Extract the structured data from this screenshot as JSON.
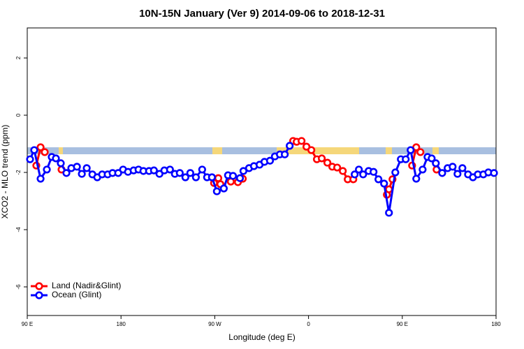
{
  "chart_data": {
    "type": "line",
    "title": "10N-15N January (Ver 9)   2014-09-06 to 2018-12-31",
    "x_label": "Longitude (deg E)",
    "y_label": "XCO2 - MLO trend (ppm)",
    "xlim": [
      90,
      540
    ],
    "xticks": [
      {
        "value": 90,
        "label": "90 E"
      },
      180,
      {
        "value": 270,
        "label": "90 W"
      },
      {
        "value": 360,
        "label": "0"
      },
      {
        "value": 450,
        "label": "90 E"
      },
      {
        "value": 540,
        "label": "180"
      }
    ],
    "ylim": [
      -7,
      3.05
    ],
    "yticks": [
      2,
      0,
      -2,
      -4,
      -6
    ],
    "legend": "bottom-left",
    "series": [
      {
        "name": "Land (Nadir&Glint)",
        "color": "#ff0000",
        "x": [
          98.7,
          102.8,
          106.8,
          null,
          122.9,
          null,
          269.3,
          273.4,
          275.4,
          null,
          285.4,
          292.2,
          296.9,
          null,
          345.2,
          348.6,
          353.3,
          358.0,
          362.7,
          368.0,
          372.7,
          378.1,
          382.8,
          387.5,
          392.9,
          397.6,
          403.0,
          null,
          435.2,
          437.2,
          440.6,
          null,
          459.4,
          463.4,
          467.4,
          null,
          482.9
        ],
        "values": [
          -1.76,
          -1.12,
          -1.29,
          null,
          -1.9,
          null,
          -2.37,
          -2.2,
          -2.41,
          null,
          -2.32,
          -2.34,
          -2.22,
          null,
          -0.9,
          -0.93,
          -0.9,
          -1.1,
          -1.22,
          -1.54,
          -1.51,
          -1.66,
          -1.8,
          -1.83,
          -1.95,
          -2.24,
          -2.24,
          null,
          -2.78,
          -2.59,
          -2.24,
          null,
          -1.76,
          -1.12,
          -1.29,
          null,
          -1.9
        ]
      },
      {
        "name": "Ocean (Glint)",
        "color": "#0000ff",
        "x": [
          92.7,
          96.7,
          102.8,
          108.8,
          113.5,
          117.5,
          122.2,
          127.6,
          132.3,
          137.7,
          142.4,
          147.1,
          152.5,
          157.2,
          161.9,
          167.2,
          171.9,
          177.3,
          182.0,
          186.7,
          192.1,
          196.8,
          201.5,
          206.9,
          211.6,
          216.9,
          221.6,
          227.0,
          231.7,
          236.4,
          241.8,
          246.5,
          251.9,
          257.9,
          262.6,
          267.3,
          272.0,
          278.7,
          282.7,
          287.5,
          294.2,
          297.5,
          302.9,
          307.6,
          313.0,
          317.7,
          323.0,
          327.7,
          332.5,
          337.2,
          341.9,
          null,
          404.3,
          408.3,
          412.4,
          417.7,
          422.4,
          427.1,
          432.5,
          437.2,
          443.3,
          448.6,
          453.3,
          458.0,
          463.4,
          469.5,
          474.2,
          478.2,
          482.2,
          488.3,
          493.5,
          498.3,
          503.0,
          507.7,
          513.1,
          517.8,
          522.5,
          527.8,
          532.6,
          538.0
        ],
        "values": [
          -1.54,
          -1.22,
          -2.22,
          -1.9,
          -1.46,
          -1.51,
          -1.68,
          -2.02,
          -1.85,
          -1.8,
          -2.05,
          -1.85,
          -2.07,
          -2.17,
          -2.07,
          -2.07,
          -2.02,
          -2.02,
          -1.9,
          -1.98,
          -1.93,
          -1.9,
          -1.95,
          -1.95,
          -1.93,
          -2.05,
          -1.93,
          -1.9,
          -2.05,
          -2.02,
          -2.17,
          -2.02,
          -2.17,
          -1.9,
          -2.17,
          -2.17,
          -2.66,
          -2.56,
          -2.1,
          -2.12,
          -2.2,
          -1.95,
          -1.85,
          -1.78,
          -1.73,
          -1.63,
          -1.59,
          -1.44,
          -1.37,
          -1.37,
          -1.07,
          null,
          -2.07,
          -1.9,
          -2.07,
          -1.95,
          -1.98,
          -2.24,
          -2.39,
          -3.41,
          -2.0,
          -1.54,
          -1.54,
          -1.22,
          -2.22,
          -1.9,
          -1.46,
          -1.51,
          -1.68,
          -2.02,
          -1.85,
          -1.8,
          -2.05,
          -1.85,
          -2.07,
          -2.17,
          -2.07,
          -2.07,
          -2.0,
          -2.02
        ]
      }
    ]
  }
}
